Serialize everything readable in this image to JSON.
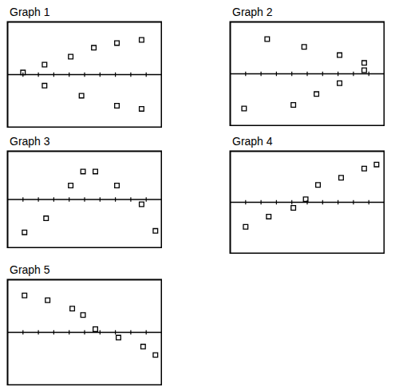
{
  "chart_data": [
    {
      "type": "scatter",
      "title": "Graph 1",
      "color": "#000000",
      "marker": "square",
      "tick_labels": false,
      "x": [
        1.0,
        2.4,
        2.4,
        4.1,
        4.8,
        5.6,
        7.1,
        7.1,
        8.7,
        8.7
      ],
      "values": [
        0.4,
        1.9,
        -2.1,
        3.4,
        -4.0,
        5.1,
        6.0,
        -5.9,
        6.6,
        -6.5
      ],
      "xlim": [
        0,
        10
      ],
      "ylim": [
        -10,
        10
      ],
      "xticks": [
        1,
        2,
        3,
        4,
        5,
        6,
        7,
        8,
        9
      ]
    },
    {
      "type": "scatter",
      "title": "Graph 2",
      "color": "#000000",
      "marker": "square",
      "tick_labels": false,
      "x": [
        0.9,
        2.4,
        4.1,
        4.8,
        5.6,
        7.1,
        7.1,
        8.7,
        8.7
      ],
      "values": [
        -6.7,
        6.7,
        -6.0,
        5.2,
        -3.9,
        3.6,
        -1.8,
        2.1,
        0.7
      ],
      "xlim": [
        0,
        10
      ],
      "ylim": [
        -10,
        10
      ],
      "xticks": [
        1,
        2,
        3,
        4,
        5,
        6,
        7,
        8,
        9
      ]
    },
    {
      "type": "scatter",
      "title": "Graph 3",
      "color": "#000000",
      "marker": "square",
      "tick_labels": false,
      "x": [
        1.1,
        2.5,
        4.1,
        4.9,
        5.7,
        7.1,
        8.7,
        9.6
      ],
      "values": [
        -6.8,
        -3.9,
        2.9,
        5.8,
        5.8,
        2.9,
        -1.0,
        -6.5
      ],
      "xlim": [
        0,
        10
      ],
      "ylim": [
        -10,
        10
      ],
      "xticks": [
        1,
        2,
        3,
        4,
        5,
        6,
        7,
        8,
        9
      ]
    },
    {
      "type": "scatter",
      "title": "Graph 4",
      "color": "#000000",
      "marker": "square",
      "tick_labels": false,
      "x": [
        1.0,
        2.5,
        4.1,
        4.9,
        5.7,
        7.2,
        8.7,
        9.5
      ],
      "values": [
        -4.8,
        -2.8,
        -1.1,
        0.6,
        3.4,
        4.8,
        6.6,
        7.4
      ],
      "xlim": [
        0,
        10
      ],
      "ylim": [
        -10,
        10
      ],
      "xticks": [
        1,
        2,
        3,
        4,
        5,
        6,
        7,
        8,
        9
      ]
    },
    {
      "type": "scatter",
      "title": "Graph 5",
      "color": "#000000",
      "marker": "square",
      "tick_labels": false,
      "x": [
        1.1,
        2.6,
        4.2,
        4.9,
        5.7,
        7.2,
        8.8,
        9.6
      ],
      "values": [
        7.0,
        6.1,
        4.5,
        3.3,
        0.6,
        -1.0,
        -2.7,
        -4.3
      ],
      "xlim": [
        0,
        10
      ],
      "ylim": [
        -10,
        10
      ],
      "xticks": [
        1,
        2,
        3,
        4,
        5,
        6,
        7,
        8,
        9
      ]
    }
  ]
}
